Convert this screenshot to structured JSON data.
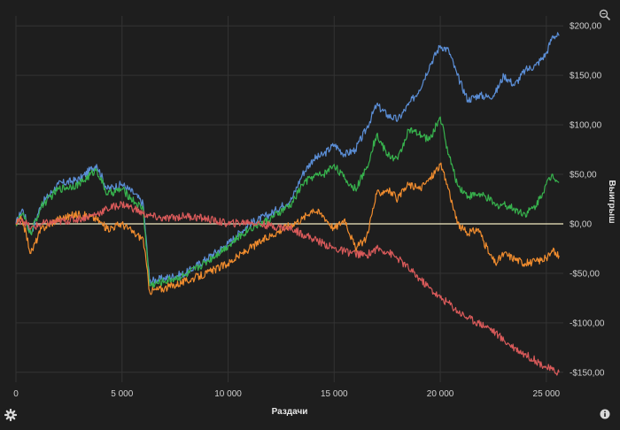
{
  "chart_data": {
    "type": "line",
    "xlabel": "Раздачи",
    "ylabel": "Выигрыш",
    "xlim": [
      0,
      25800
    ],
    "ylim": [
      -160,
      210
    ],
    "x_ticks": [
      0,
      5000,
      10000,
      15000,
      20000,
      25000
    ],
    "x_tick_labels": [
      "0",
      "5 000",
      "10 000",
      "15 000",
      "20 000",
      "25 000"
    ],
    "y_ticks": [
      200,
      150,
      100,
      50,
      0,
      -50,
      -100,
      -150
    ],
    "y_tick_labels": [
      "$200,00",
      "$150,00",
      "$100,00",
      "$50,00",
      "$0,00",
      "-$50,00",
      "-$100,00",
      "-$150,00"
    ],
    "grid": true,
    "zero_line_color": "#f3ecc2",
    "series": [
      {
        "color": "#5b8ed6",
        "x": [
          0,
          300,
          700,
          1200,
          2000,
          3000,
          3800,
          4300,
          5000,
          5600,
          6000,
          6300,
          7000,
          8000,
          9000,
          10000,
          11000,
          12000,
          13000,
          13500,
          14000,
          14500,
          15000,
          15500,
          16000,
          16500,
          17000,
          17500,
          18000,
          18500,
          19000,
          19500,
          20000,
          20400,
          20800,
          21300,
          21800,
          22300,
          22600,
          23000,
          23500,
          24000,
          24500,
          25000,
          25300,
          25600
        ],
        "y": [
          0,
          15,
          -10,
          20,
          40,
          45,
          60,
          35,
          40,
          30,
          20,
          -58,
          -55,
          -50,
          -35,
          -20,
          0,
          10,
          25,
          50,
          65,
          70,
          80,
          70,
          75,
          95,
          120,
          110,
          105,
          120,
          135,
          160,
          180,
          175,
          150,
          125,
          130,
          128,
          132,
          150,
          140,
          155,
          160,
          172,
          190,
          190
        ]
      },
      {
        "color": "#37b24d",
        "x": [
          0,
          300,
          700,
          1200,
          2000,
          3000,
          3800,
          4300,
          5000,
          5600,
          6000,
          6300,
          7000,
          8000,
          9000,
          10000,
          11000,
          12000,
          13000,
          13500,
          14000,
          14500,
          15000,
          15500,
          16000,
          16500,
          17000,
          17500,
          18000,
          18500,
          19000,
          19500,
          20000,
          20400,
          20800,
          21300,
          21800,
          22300,
          22600,
          23000,
          23500,
          24000,
          24500,
          25000,
          25300,
          25600
        ],
        "y": [
          0,
          10,
          -10,
          18,
          35,
          40,
          55,
          30,
          35,
          22,
          15,
          -62,
          -58,
          -52,
          -38,
          -22,
          -5,
          5,
          20,
          40,
          48,
          50,
          60,
          45,
          35,
          55,
          90,
          70,
          65,
          95,
          90,
          85,
          108,
          70,
          40,
          28,
          30,
          25,
          18,
          20,
          15,
          10,
          18,
          40,
          50,
          42
        ]
      },
      {
        "color": "#f08c2e",
        "x": [
          0,
          300,
          700,
          1200,
          2000,
          3000,
          3800,
          4300,
          5000,
          5600,
          6000,
          6300,
          7000,
          8000,
          9000,
          10000,
          11000,
          12000,
          13000,
          13500,
          14000,
          14500,
          15000,
          15500,
          16000,
          16500,
          17000,
          17500,
          18000,
          18500,
          19000,
          19500,
          20000,
          20400,
          20800,
          21300,
          21800,
          22300,
          22600,
          23000,
          23500,
          24000,
          24500,
          25000,
          25300,
          25600
        ],
        "y": [
          0,
          5,
          -30,
          -5,
          5,
          10,
          5,
          -5,
          0,
          -10,
          -15,
          -68,
          -65,
          -58,
          -50,
          -40,
          -25,
          -12,
          0,
          5,
          15,
          8,
          -5,
          5,
          -25,
          -15,
          30,
          35,
          25,
          40,
          35,
          45,
          60,
          35,
          0,
          -10,
          -5,
          -30,
          -40,
          -30,
          -35,
          -40,
          -38,
          -35,
          -28,
          -32
        ]
      },
      {
        "color": "#d95a5a",
        "x": [
          0,
          300,
          700,
          1200,
          2000,
          3000,
          3800,
          4300,
          5000,
          5600,
          6000,
          6300,
          7000,
          8000,
          9000,
          10000,
          11000,
          12000,
          13000,
          13500,
          14000,
          14500,
          15000,
          15500,
          16000,
          16500,
          17000,
          17500,
          18000,
          18500,
          19000,
          19500,
          20000,
          20400,
          20800,
          21300,
          21800,
          22300,
          22600,
          23000,
          23500,
          24000,
          24500,
          25000,
          25300,
          25600
        ],
        "y": [
          0,
          5,
          -5,
          0,
          2,
          5,
          10,
          15,
          20,
          15,
          10,
          8,
          5,
          8,
          5,
          0,
          2,
          -2,
          -5,
          -10,
          -15,
          -20,
          -25,
          -28,
          -30,
          -32,
          -25,
          -28,
          -35,
          -45,
          -55,
          -65,
          -75,
          -80,
          -88,
          -95,
          -100,
          -105,
          -110,
          -118,
          -125,
          -132,
          -138,
          -145,
          -148,
          -150
        ]
      }
    ]
  },
  "icons": {
    "zoom": "zoom-icon",
    "settings": "gear-icon",
    "info": "info-icon"
  }
}
